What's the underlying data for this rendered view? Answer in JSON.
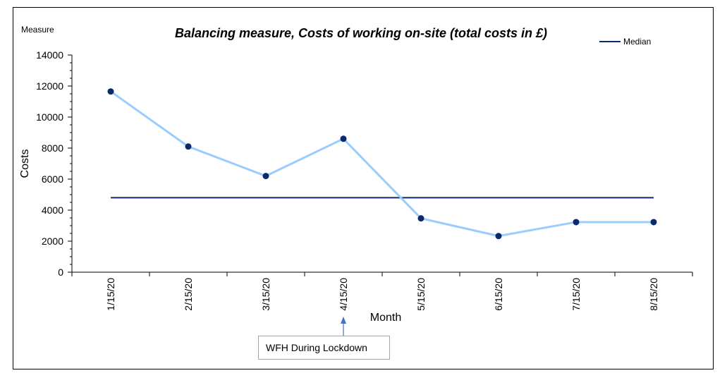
{
  "chart_data": {
    "type": "line",
    "title": "Balancing measure, Costs of working on-site (total costs in £)",
    "corner_label": "Measure",
    "xlabel": "Month",
    "ylabel": "Costs",
    "categories": [
      "1/15/20",
      "2/15/20",
      "3/15/20",
      "4/15/20",
      "5/15/20",
      "6/15/20",
      "7/15/20",
      "8/15/20"
    ],
    "series": [
      {
        "name": "",
        "values": [
          11650,
          8100,
          6200,
          8600,
          3470,
          2330,
          3230,
          3230
        ],
        "color": "#99ccff",
        "marker_color": "#0b2a6b"
      },
      {
        "name": "Median",
        "values": [
          4800,
          4800,
          4800,
          4800,
          4800,
          4800,
          4800,
          4800
        ],
        "color": "#0b2a6b"
      }
    ],
    "ylim": [
      0,
      14000
    ],
    "yticks": [
      0,
      2000,
      4000,
      6000,
      8000,
      10000,
      12000,
      14000
    ],
    "grid": false,
    "legend": "top-right",
    "annotation": {
      "text": "WFH During Lockdown",
      "category": "4/15/20"
    }
  }
}
